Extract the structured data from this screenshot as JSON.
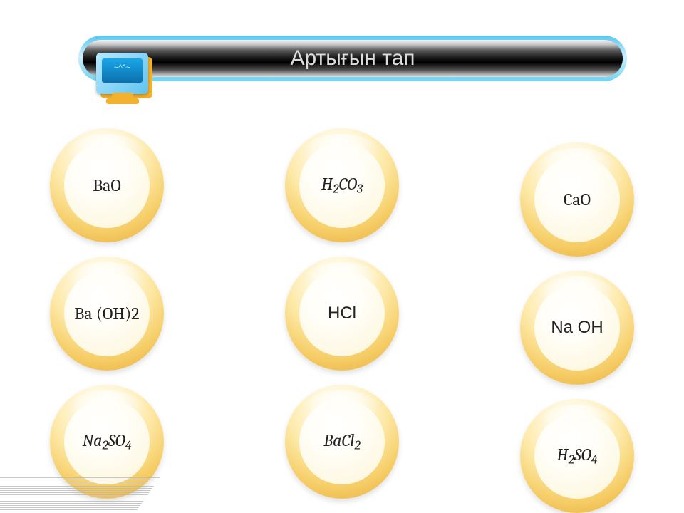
{
  "title": "Артығын тап",
  "monitor_face": "~^^~",
  "colors": {
    "sphere_outer_stops": [
      "#fffdf2",
      "#fff8df",
      "#fde9a8",
      "#f6cf6a",
      "#eeb94a",
      "#e9ac3a"
    ],
    "sphere_inner_stops": [
      "#ffffff",
      "#fffef8",
      "#fef8e1",
      "#fbeec0"
    ],
    "titlebar_outer_stops": [
      "#55c8f0",
      "#cfeefc",
      "#6fd4f2"
    ],
    "titlebar_metal_stops": [
      "#f2f2f2",
      "#c9c9c9",
      "#5a5a5a",
      "#1a1a1a",
      "#000000",
      "#494949",
      "#bfbfbf",
      "#e0e0e0"
    ],
    "title_text": "#dcdcdc",
    "monitor_accent": "#f2b12e",
    "hatch": "#b8b8b8",
    "background": "#ffffff"
  },
  "grid": {
    "type": "infographic",
    "columns": [
      {
        "items": [
          {
            "name": "bao",
            "html": "BaO",
            "style": "serif"
          },
          {
            "name": "baoh2",
            "html": "Ba (OH)2",
            "style": "serif"
          },
          {
            "name": "na2so4",
            "html": "Na<sub>2</sub>SO<sub>4</sub>",
            "style": "italic"
          }
        ]
      },
      {
        "items": [
          {
            "name": "h2co3",
            "html": "H<sub>2</sub>CO<sub>3</sub>",
            "style": "italic"
          },
          {
            "name": "hcl",
            "html": "HCl",
            "style": "sans"
          },
          {
            "name": "bacl2",
            "html": "BaCl<sub>2</sub>",
            "style": "italic"
          }
        ]
      },
      {
        "items": [
          {
            "name": "cao",
            "html": "CaO",
            "style": "serif"
          },
          {
            "name": "naoh",
            "html": "Na OH",
            "style": "sans"
          },
          {
            "name": "h2so4",
            "html": "H<sub>2</sub>SO<sub>4</sub>",
            "style": "italic"
          }
        ]
      }
    ]
  }
}
